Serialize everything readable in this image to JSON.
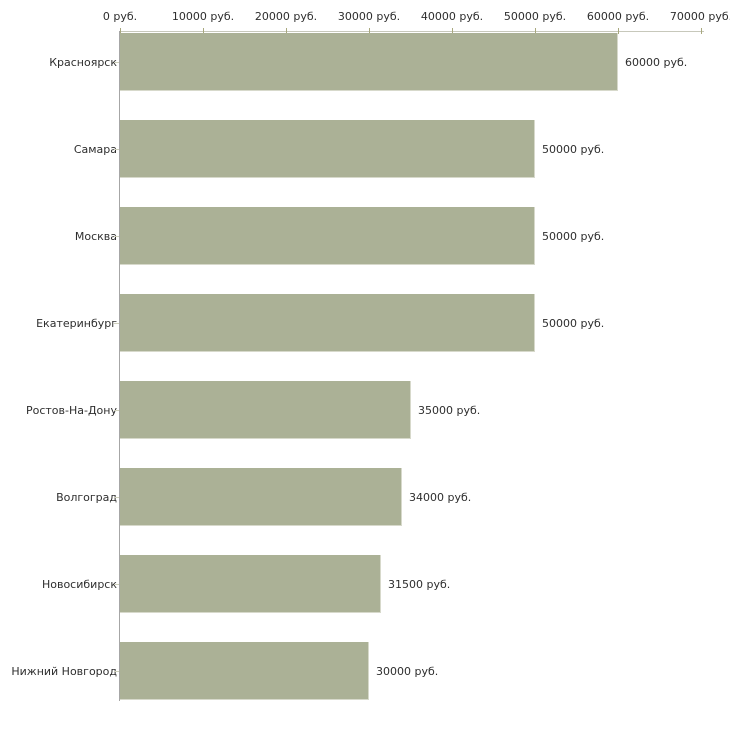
{
  "chart_data": {
    "type": "bar",
    "orientation": "horizontal",
    "title": "",
    "xlabel": "",
    "ylabel": "",
    "unit": "руб.",
    "grid": false,
    "legend": false,
    "categories": [
      "Красноярск",
      "Самара",
      "Москва",
      "Екатеринбург",
      "Ростов-На-Дону",
      "Волгоград",
      "Новосибирск",
      "Нижний Новгород"
    ],
    "values": [
      60000,
      50000,
      50000,
      50000,
      35000,
      34000,
      31500,
      30000
    ],
    "value_labels": [
      "60000 руб.",
      "50000 руб.",
      "50000 руб.",
      "50000 руб.",
      "35000 руб.",
      "34000 руб.",
      "31500 руб.",
      "30000 руб."
    ],
    "x_ticks": [
      0,
      10000,
      20000,
      30000,
      40000,
      50000,
      60000,
      70000
    ],
    "x_tick_labels": [
      "0 руб.",
      "10000 руб.",
      "20000 руб.",
      "30000 руб.",
      "40000 руб.",
      "50000 руб.",
      "60000 руб.",
      "70000 руб."
    ],
    "xlim": [
      0,
      70000
    ],
    "colors": {
      "bar": "#abb196",
      "bar_edge": "#d7d9cb",
      "x_axis_line": "#c7c8bb",
      "x_axis_tick": "#a8a87e",
      "y_axis_line": "#a6a6a6",
      "category_tick": "#cfd0bd",
      "text": "#2e2e2e",
      "background": "#ffffff"
    }
  }
}
